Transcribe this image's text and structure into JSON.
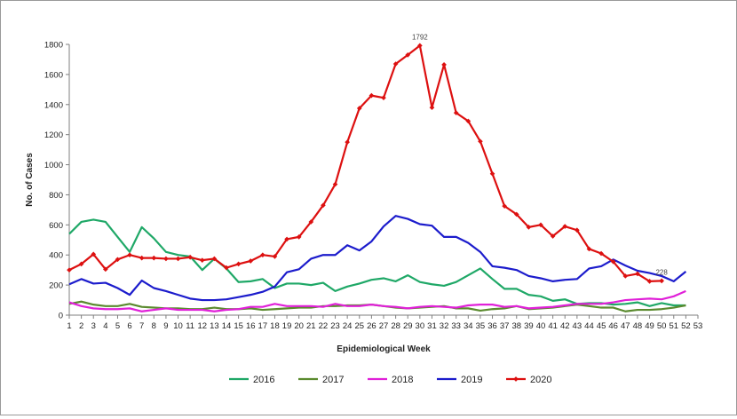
{
  "chart_data": {
    "type": "line",
    "title": "",
    "xlabel": "Epidemiological Week",
    "ylabel": "No. of Cases",
    "x": [
      1,
      2,
      3,
      4,
      5,
      6,
      7,
      8,
      9,
      10,
      11,
      12,
      13,
      14,
      15,
      16,
      17,
      18,
      19,
      20,
      21,
      22,
      23,
      24,
      25,
      26,
      27,
      28,
      29,
      30,
      31,
      32,
      33,
      34,
      35,
      36,
      37,
      38,
      39,
      40,
      41,
      42,
      43,
      44,
      45,
      46,
      47,
      48,
      49,
      50,
      51,
      52
    ],
    "xticks": [
      1,
      2,
      3,
      4,
      5,
      6,
      7,
      8,
      9,
      10,
      11,
      12,
      13,
      14,
      15,
      16,
      17,
      18,
      19,
      20,
      21,
      22,
      23,
      24,
      25,
      26,
      27,
      28,
      29,
      30,
      31,
      32,
      33,
      34,
      35,
      36,
      37,
      38,
      39,
      40,
      41,
      42,
      43,
      44,
      45,
      46,
      47,
      48,
      49,
      50,
      51,
      52,
      53
    ],
    "xlim": [
      1,
      53
    ],
    "ylim": [
      0,
      1800
    ],
    "yticks": [
      0,
      200,
      400,
      600,
      800,
      1000,
      1200,
      1400,
      1600,
      1800
    ],
    "grid": false,
    "legend": "bottom",
    "series": [
      {
        "name": "2016",
        "color": "#1fa867",
        "marker": false,
        "values": [
          540,
          620,
          635,
          620,
          520,
          420,
          585,
          510,
          420,
          400,
          390,
          300,
          375,
          310,
          220,
          225,
          240,
          180,
          210,
          210,
          200,
          215,
          160,
          190,
          210,
          235,
          245,
          225,
          265,
          220,
          205,
          195,
          220,
          265,
          310,
          240,
          175,
          175,
          135,
          125,
          95,
          105,
          75,
          80,
          80,
          70,
          75,
          85,
          60,
          80,
          65,
          65
        ]
      },
      {
        "name": "2017",
        "color": "#5a8a2e",
        "marker": false,
        "values": [
          75,
          90,
          70,
          60,
          60,
          75,
          55,
          50,
          45,
          45,
          40,
          40,
          50,
          40,
          40,
          45,
          35,
          40,
          45,
          50,
          50,
          60,
          60,
          65,
          65,
          70,
          60,
          50,
          45,
          50,
          55,
          60,
          45,
          45,
          30,
          40,
          45,
          60,
          40,
          45,
          50,
          60,
          70,
          60,
          50,
          50,
          25,
          35,
          35,
          40,
          50,
          65
        ]
      },
      {
        "name": "2018",
        "color": "#e020d8",
        "marker": false,
        "values": [
          85,
          60,
          45,
          40,
          40,
          45,
          25,
          35,
          45,
          35,
          35,
          35,
          25,
          35,
          40,
          55,
          55,
          75,
          60,
          60,
          60,
          55,
          75,
          60,
          60,
          70,
          60,
          55,
          45,
          55,
          60,
          55,
          50,
          65,
          70,
          70,
          55,
          60,
          45,
          50,
          55,
          65,
          75,
          75,
          75,
          85,
          100,
          105,
          110,
          105,
          125,
          160
        ]
      },
      {
        "name": "2019",
        "color": "#1c1ccc",
        "marker": false,
        "values": [
          205,
          240,
          210,
          215,
          180,
          135,
          230,
          180,
          160,
          135,
          110,
          100,
          100,
          105,
          120,
          135,
          155,
          190,
          285,
          305,
          375,
          400,
          400,
          465,
          430,
          490,
          590,
          660,
          640,
          605,
          595,
          520,
          520,
          480,
          420,
          325,
          315,
          300,
          260,
          245,
          225,
          235,
          240,
          310,
          325,
          370,
          330,
          295,
          280,
          260,
          225,
          290
        ]
      },
      {
        "name": "2020",
        "color": "#dd1010",
        "marker": true,
        "values": [
          300,
          340,
          405,
          305,
          370,
          400,
          380,
          380,
          375,
          375,
          385,
          365,
          375,
          315,
          340,
          360,
          400,
          390,
          505,
          520,
          620,
          730,
          870,
          1150,
          1375,
          1460,
          1445,
          1670,
          1730,
          1792,
          1380,
          1665,
          1345,
          1290,
          1155,
          940,
          725,
          670,
          585,
          600,
          525,
          590,
          565,
          440,
          410,
          355,
          260,
          275,
          225,
          228,
          null,
          null
        ]
      }
    ],
    "annotations": [
      {
        "series": "2020",
        "week": 30,
        "label": "1792"
      },
      {
        "series": "2020",
        "week": 50,
        "label": "228"
      }
    ]
  }
}
